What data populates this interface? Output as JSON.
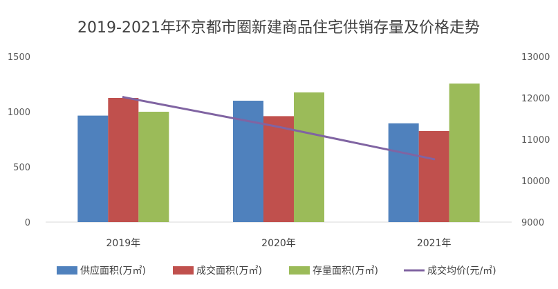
{
  "chart_data": {
    "type": "bar",
    "title": "2019-2021年环京都市圈新建商品住宅供销存量及价格走势",
    "categories": [
      "2019年",
      "2020年",
      "2021年"
    ],
    "series": [
      {
        "name": "供应面积(万㎡)",
        "type": "bar",
        "axis": "left",
        "color": "#4F81BD",
        "values": [
          965,
          1100,
          895
        ]
      },
      {
        "name": "成交面积(万㎡)",
        "type": "bar",
        "axis": "left",
        "color": "#C0504D",
        "values": [
          1125,
          960,
          825
        ]
      },
      {
        "name": "存量面积(万㎡)",
        "type": "bar",
        "axis": "left",
        "color": "#9BBB59",
        "values": [
          1000,
          1175,
          1255
        ]
      },
      {
        "name": "成交均价(元/㎡)",
        "type": "line",
        "axis": "right",
        "color": "#8064A2",
        "values": [
          12020,
          11300,
          10520
        ]
      }
    ],
    "y_left": {
      "min": 0,
      "max": 1500,
      "ticks": [
        0,
        500,
        1000,
        1500
      ]
    },
    "y_right": {
      "min": 9000,
      "max": 13000,
      "ticks": [
        9000,
        10000,
        11000,
        12000,
        13000
      ]
    },
    "grid": false,
    "legend_position": "bottom"
  }
}
